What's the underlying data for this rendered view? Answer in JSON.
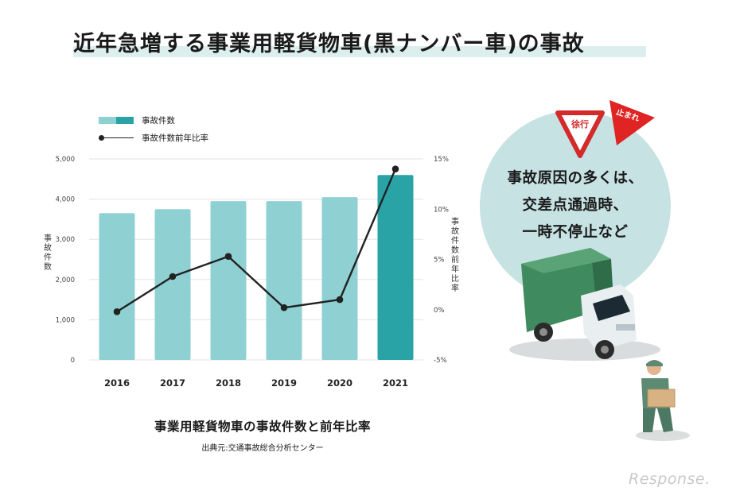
{
  "header": {
    "title": "近年急増する事業用軽貨物車(黒ナンバー車)の事故"
  },
  "legend": {
    "bar_label": "事故件数",
    "line_label": "事故件数前年比率"
  },
  "caption": {
    "main": "事業用軽貨物車の事故件数と前年比率",
    "source": "出典元:交通事故総合分析センター"
  },
  "illustration": {
    "lines": [
      "事故原因の多くは、",
      "交差点通過時、",
      "一時不停止など"
    ],
    "sign_yield": "徐行",
    "sign_stop": "止まれ"
  },
  "watermark": "Response.",
  "colors": {
    "bar": "#8fd0d3",
    "bar_highlight": "#2aa3a7",
    "line": "#222222",
    "circle": "#c6e2e3"
  },
  "chart_data": {
    "type": "bar",
    "categories": [
      "2016",
      "2017",
      "2018",
      "2019",
      "2020",
      "2021"
    ],
    "series": [
      {
        "name": "事故件数",
        "type": "bar",
        "axis": "left",
        "values": [
          3650,
          3750,
          3950,
          3950,
          4050,
          4600
        ]
      },
      {
        "name": "事故件数前年比率",
        "type": "line",
        "axis": "right",
        "values": [
          -0.2,
          3.3,
          5.3,
          0.2,
          1.0,
          14.0
        ]
      }
    ],
    "highlight_index": 5,
    "ylabel": "事故件数",
    "y2label": "事故件数前年比率",
    "ylim": [
      0,
      5000
    ],
    "yticks": [
      0,
      1000,
      2000,
      3000,
      4000,
      5000
    ],
    "ytick_labels": [
      "0",
      "1,000",
      "2,000",
      "3,000",
      "4,000",
      "5,000"
    ],
    "y2lim": [
      -5,
      15
    ],
    "y2ticks": [
      -5,
      0,
      5,
      10,
      15
    ],
    "y2tick_labels": [
      "-5%",
      "0%",
      "5%",
      "10%",
      "15%"
    ],
    "grid": true
  }
}
